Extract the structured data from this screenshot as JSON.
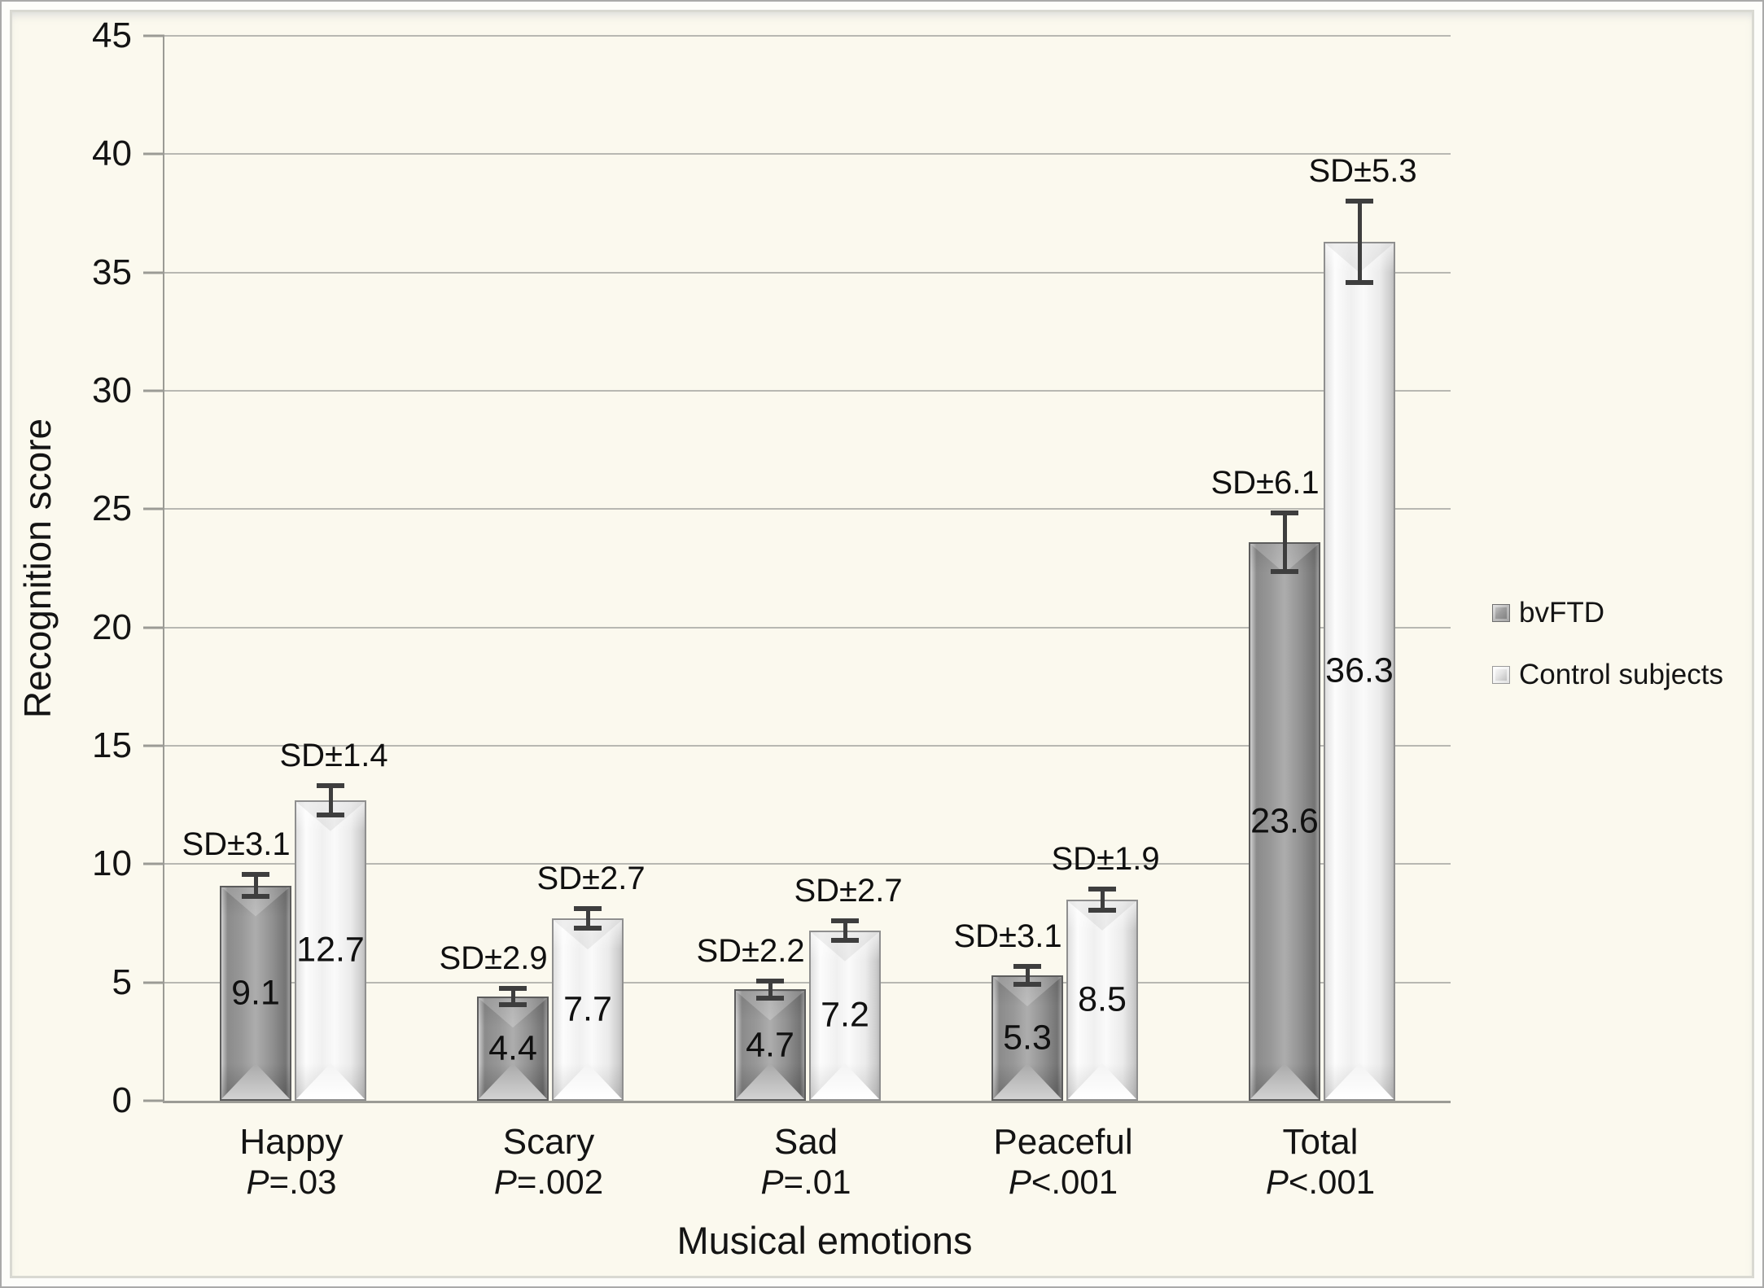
{
  "figure": {
    "frame_border_color": "#a9a9a9",
    "canvas_background": "#fbf9ee",
    "gridline_color": "#b8b8b2",
    "axis_color": "#9b9b95",
    "error_bar_color": "#3e3e3e",
    "text_color": "#141414"
  },
  "chart_data": {
    "type": "bar",
    "title": "",
    "xlabel": "Musical emotions",
    "ylabel": "Recognition score",
    "ylim": [
      0,
      45
    ],
    "yticks": [
      0,
      5,
      10,
      15,
      20,
      25,
      30,
      35,
      40,
      45
    ],
    "grid": true,
    "legend_position": "right",
    "categories": [
      "Happy",
      "Scary",
      "Sad",
      "Peaceful",
      "Total"
    ],
    "p_value_labels": [
      "P=.03",
      "P=.002",
      "P=.01",
      "P<.001",
      "P<.001"
    ],
    "series": [
      {
        "name": "bvFTD",
        "values": [
          9.1,
          4.4,
          4.7,
          5.3,
          23.6
        ],
        "sd_labels": [
          "SD±3.1",
          "SD±2.9",
          "SD±2.2",
          "SD±3.1",
          "SD±6.1"
        ],
        "error_bar_halfspan": [
          0.45,
          0.34,
          0.35,
          0.38,
          1.25
        ],
        "fill": "#9a9a9a",
        "border": "#5c5c5c"
      },
      {
        "name": "Control subjects",
        "values": [
          12.7,
          7.7,
          7.2,
          8.5,
          36.3
        ],
        "sd_labels": [
          "SD±1.4",
          "SD±2.7",
          "SD±2.7",
          "SD±1.9",
          "SD±5.3"
        ],
        "error_bar_halfspan": [
          0.62,
          0.41,
          0.41,
          0.45,
          1.72
        ],
        "fill": "#f2f2f2",
        "border": "#8f8f8f"
      }
    ]
  }
}
